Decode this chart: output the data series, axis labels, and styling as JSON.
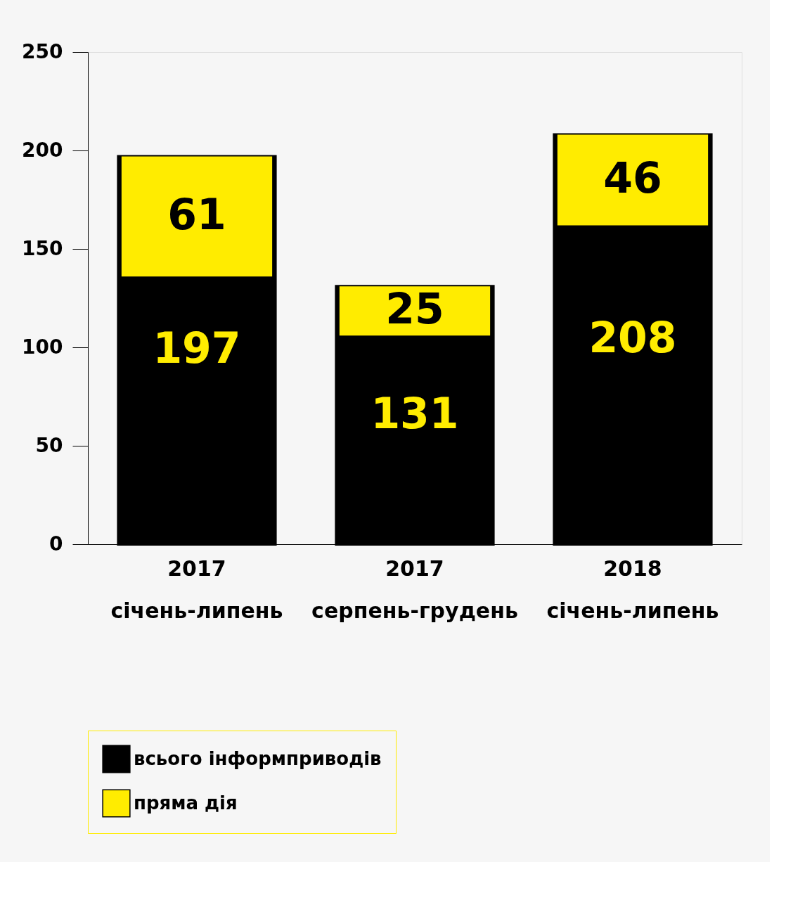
{
  "chart_data": {
    "type": "bar",
    "categories": [
      "2017\nсічень-липень",
      "2017\nсерпень-грудень",
      "2018\nсічень-липень"
    ],
    "series": [
      {
        "name": "всього інформприводів",
        "color": "#000000",
        "values": [
          197,
          131,
          208
        ]
      },
      {
        "name": "пряма дія",
        "color": "#ffec00",
        "values": [
          61,
          25,
          46
        ],
        "base": [
          136,
          106,
          162
        ]
      }
    ],
    "ylim": [
      0,
      250
    ],
    "yticks": [
      0,
      50,
      100,
      150,
      200,
      250
    ],
    "grid": false,
    "legend": "bottom left",
    "data_labels": true
  }
}
